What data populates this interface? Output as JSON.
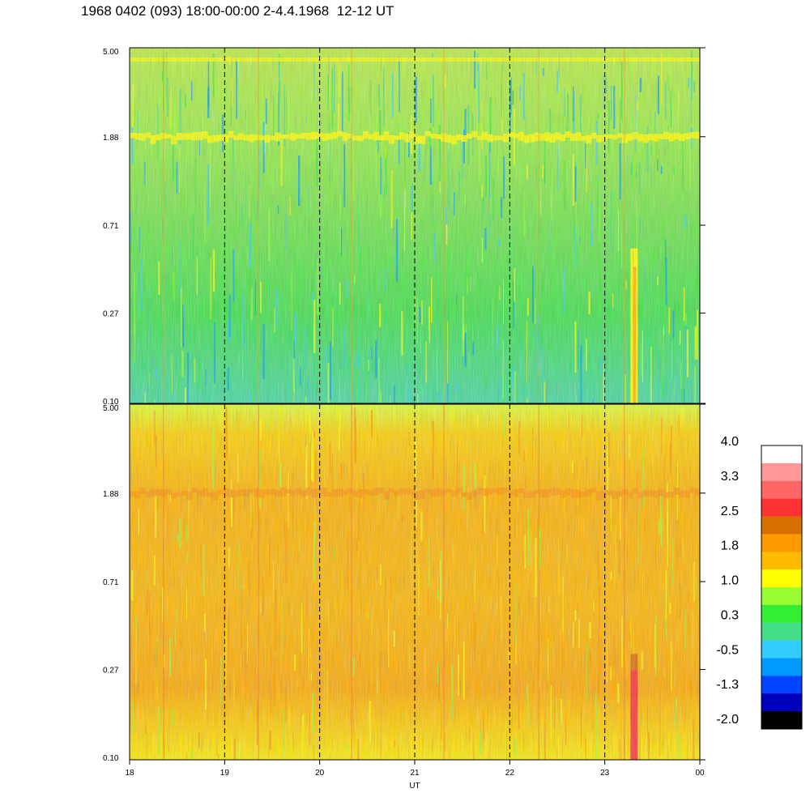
{
  "title": "1968 0402 (093) 18:00-00:00 2-4.4.1968  12-12 UT",
  "chart_data": {
    "type": "heatmap",
    "panels": [
      {
        "name": "upper",
        "dominant_band": "green-yellow",
        "bright_band_y": 1.88
      },
      {
        "name": "lower",
        "dominant_band": "yellow-orange",
        "bright_band_y": 1.88
      }
    ],
    "x_ticks": [
      "18",
      "19",
      "20",
      "21",
      "22",
      "23",
      "00"
    ],
    "x_range": [
      18,
      24
    ],
    "xlabel": "UT",
    "y_ticks": [
      "0.10",
      "0.27",
      "0.71",
      "1.88",
      "5.00"
    ],
    "y_range": [
      0.1,
      5.0
    ],
    "y_scale": "log",
    "dashed_gridlines_x": [
      19,
      20,
      21,
      22,
      23
    ],
    "colorbar": {
      "labels": [
        "4.0",
        "3.3",
        "2.5",
        "1.8",
        "1.0",
        "0.3",
        "-0.5",
        "-1.3",
        "-2.0"
      ],
      "range": [
        -2.0,
        4.0
      ],
      "colors": [
        "#ffffff",
        "#ff9999",
        "#ff6666",
        "#ff3333",
        "#d87000",
        "#ff9900",
        "#ffbb00",
        "#ffff00",
        "#99ff33",
        "#33ee33",
        "#44dd88",
        "#33ccff",
        "#0099ff",
        "#0044ff",
        "#0000bb",
        "#000000"
      ]
    }
  }
}
